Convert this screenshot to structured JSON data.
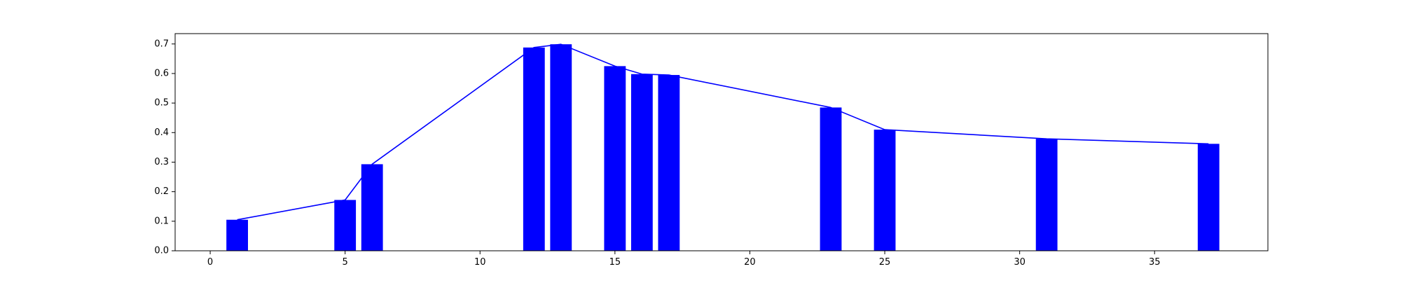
{
  "chart_data": {
    "type": "bar",
    "title": "",
    "xlabel": "",
    "ylabel": "",
    "xlim": [
      -1.3,
      39.2
    ],
    "ylim": [
      0.0,
      0.735
    ],
    "grid": false,
    "x_ticks": [
      0,
      5,
      10,
      15,
      20,
      25,
      30,
      35
    ],
    "y_ticks": [
      0.0,
      0.1,
      0.2,
      0.3,
      0.4,
      0.5,
      0.6,
      0.7
    ],
    "x_tick_labels": [
      "0",
      "5",
      "10",
      "15",
      "20",
      "25",
      "30",
      "35"
    ],
    "y_tick_labels": [
      "0.0",
      "0.1",
      "0.2",
      "0.3",
      "0.4",
      "0.5",
      "0.6",
      "0.7"
    ],
    "bar_width": 0.8,
    "x": [
      1,
      5,
      6,
      12,
      13,
      15,
      16,
      17,
      23,
      25,
      31,
      37
    ],
    "values": [
      0.105,
      0.172,
      0.293,
      0.688,
      0.699,
      0.625,
      0.598,
      0.595,
      0.485,
      0.41,
      0.379,
      0.362
    ],
    "series": [
      {
        "kind": "bar",
        "color": "#0000ff",
        "x": [
          1,
          5,
          6,
          12,
          13,
          15,
          16,
          17,
          23,
          25,
          31,
          37
        ],
        "values": [
          0.105,
          0.172,
          0.293,
          0.688,
          0.699,
          0.625,
          0.598,
          0.595,
          0.485,
          0.41,
          0.379,
          0.362
        ]
      },
      {
        "kind": "line",
        "color": "#0000ff",
        "x": [
          1,
          5,
          6,
          12,
          13,
          15,
          16,
          17,
          23,
          25,
          31,
          37
        ],
        "values": [
          0.105,
          0.172,
          0.293,
          0.688,
          0.699,
          0.625,
          0.598,
          0.595,
          0.485,
          0.41,
          0.379,
          0.362
        ]
      }
    ]
  }
}
